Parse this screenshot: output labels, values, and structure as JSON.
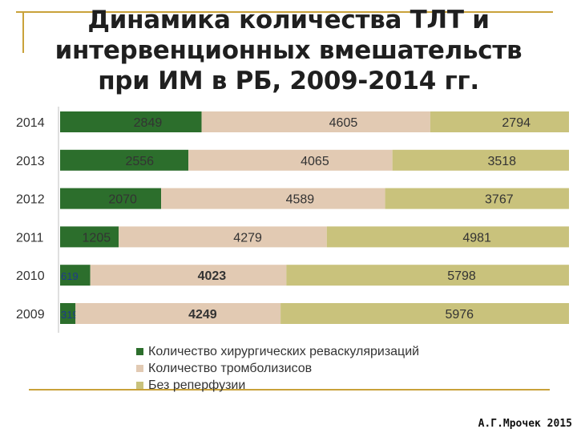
{
  "title_lines": [
    "Динамика количества ТЛТ и",
    "интервенционных вмешательств",
    "при ИМ в РБ, 2009-2014 гг."
  ],
  "author": "А.Г.Мрочек 2015",
  "colors": {
    "series1": "#2c6e2c",
    "series2": "#e2cab3",
    "series3": "#c9c27c",
    "accent_line": "#c9a23a"
  },
  "chart_data": {
    "type": "bar",
    "orientation": "horizontal",
    "stacked": true,
    "normalized": true,
    "categories": [
      "2014",
      "2013",
      "2012",
      "2011",
      "2010",
      "2009"
    ],
    "series": [
      {
        "name": "Количество хирургических реваскуляризаций",
        "values": [
          2849,
          2556,
          2070,
          1205,
          619,
          319
        ]
      },
      {
        "name": "Количество тромболизисов",
        "values": [
          4605,
          4065,
          4589,
          4279,
          4023,
          4249
        ]
      },
      {
        "name": "Без реперфузии",
        "values": [
          2794,
          3518,
          3767,
          4981,
          5798,
          5976
        ]
      }
    ],
    "legend_position": "bottom",
    "grid": false
  }
}
